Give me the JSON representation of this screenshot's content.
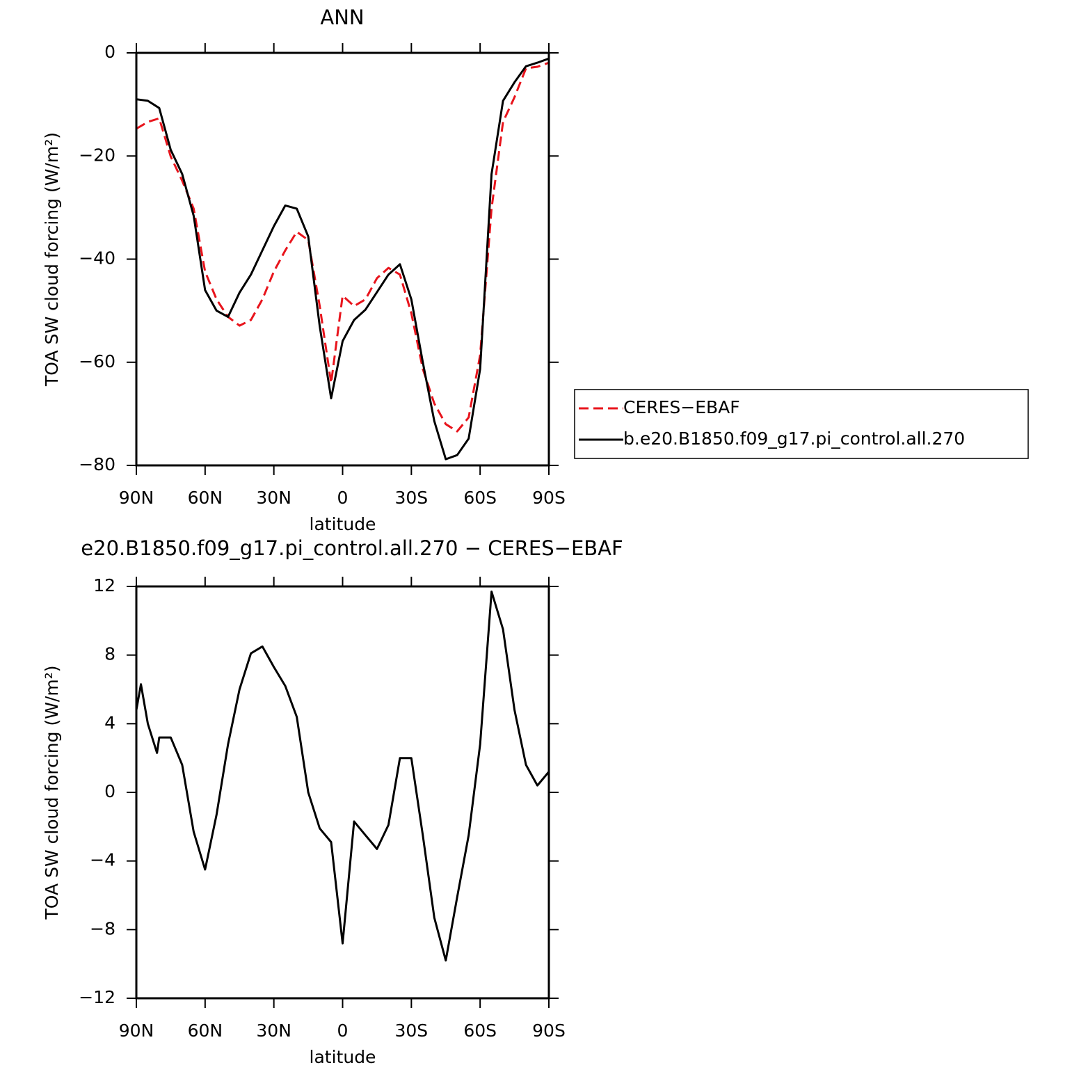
{
  "chart_data": [
    {
      "type": "line",
      "title": "ANN",
      "xlabel": "latitude",
      "ylabel": "TOA SW cloud forcing (W/m²)",
      "x": [
        90,
        85,
        80,
        75,
        70,
        65,
        60,
        55,
        50,
        45,
        40,
        35,
        30,
        25,
        20,
        15,
        10,
        5,
        0,
        -5,
        -10,
        -15,
        -20,
        -25,
        -30,
        -35,
        -40,
        -45,
        -50,
        -55,
        -60,
        -65,
        -70,
        -75,
        -80,
        -85,
        -90
      ],
      "xlim": [
        90,
        -90
      ],
      "xticks": [
        {
          "value": 90,
          "label": "90N"
        },
        {
          "value": 60,
          "label": "60N"
        },
        {
          "value": 30,
          "label": "30N"
        },
        0,
        {
          "value": -30,
          "label": "30S"
        },
        {
          "value": -60,
          "label": "60S"
        },
        {
          "value": -90,
          "label": "90S"
        }
      ],
      "ylim": [
        -80,
        0
      ],
      "yticks": [
        0,
        {
          "value": -20,
          "label": "−20"
        },
        {
          "value": -40,
          "label": "−40"
        },
        {
          "value": -60,
          "label": "−60"
        },
        {
          "value": -80,
          "label": "−80"
        }
      ],
      "legend": "right",
      "series": [
        {
          "name": "CERES−EBAF",
          "color": "#e8141c",
          "dash": true,
          "values": [
            -14.7,
            -13.4,
            -12.7,
            -20.1,
            -24.8,
            -30.2,
            -42.4,
            -47.8,
            -51.2,
            -52.9,
            -51.8,
            -47.8,
            -42.4,
            -38.3,
            -34.7,
            -36.3,
            -49.1,
            -64,
            -47.1,
            -49.1,
            -47.8,
            -43.7,
            -41.7,
            -43,
            -50.5,
            -61.3,
            -68,
            -72,
            -73.4,
            -70.7,
            -58.6,
            -30.2,
            -13.4,
            -8.6,
            -3,
            -2.7,
            -1.9
          ]
        },
        {
          "name": "b.e20.B1850.f09_g17.pi_control.all.270",
          "color": "#000000",
          "dash": false,
          "values": [
            -9,
            -9.3,
            -10.7,
            -18.8,
            -23.5,
            -31.6,
            -46,
            -50,
            -51.2,
            -46.5,
            -43,
            -38.3,
            -33.6,
            -29.6,
            -30.2,
            -35.6,
            -53,
            -67,
            -55.9,
            -51.8,
            -49.8,
            -46.4,
            -43,
            -41,
            -47.8,
            -60,
            -71.4,
            -78.8,
            -78,
            -74.8,
            -61.3,
            -23.5,
            -9.3,
            -5.7,
            -2.6,
            -1.9,
            -1.1
          ]
        }
      ]
    },
    {
      "type": "line",
      "title": "e20.B1850.f09_g17.pi_control.all.270 − CERES−EBAF",
      "xlabel": "latitude",
      "ylabel": "TOA SW cloud forcing (W/m²)",
      "x": [
        90,
        88,
        85,
        81,
        80,
        75,
        70,
        65,
        60,
        55,
        50,
        45,
        40,
        35,
        30,
        25,
        20,
        15,
        10,
        5,
        0,
        -5,
        -10,
        -15,
        -20,
        -25,
        -30,
        -35,
        -40,
        -45,
        -50,
        -55,
        -60,
        -65,
        -70,
        -75,
        -80,
        -85,
        -90
      ],
      "xlim": [
        90,
        -90
      ],
      "xticks": [
        {
          "value": 90,
          "label": "90N"
        },
        {
          "value": 60,
          "label": "60N"
        },
        {
          "value": 30,
          "label": "30N"
        },
        0,
        {
          "value": -30,
          "label": "30S"
        },
        {
          "value": -60,
          "label": "60S"
        },
        {
          "value": -90,
          "label": "90S"
        }
      ],
      "ylim": [
        -12,
        12
      ],
      "yticks": [
        12,
        8,
        4,
        0,
        {
          "value": -4,
          "label": "−4"
        },
        {
          "value": -8,
          "label": "−8"
        },
        {
          "value": -12,
          "label": "−12"
        }
      ],
      "series": [
        {
          "color": "#000000",
          "dash": false,
          "values": [
            4.8,
            6.3,
            4.0,
            2.3,
            3.2,
            3.2,
            1.6,
            -2.3,
            -4.5,
            -1.3,
            2.8,
            6.0,
            8.1,
            8.5,
            7.3,
            6.2,
            4.4,
            0,
            -2.1,
            -2.9,
            -8.8,
            -1.7,
            -2.5,
            -3.3,
            -1.9,
            2.0,
            2.0,
            -2.5,
            -7.3,
            -9.8,
            -6.1,
            -2.5,
            2.8,
            11.7,
            9.5,
            4.8,
            1.6,
            0.4,
            1.2
          ]
        }
      ]
    }
  ]
}
